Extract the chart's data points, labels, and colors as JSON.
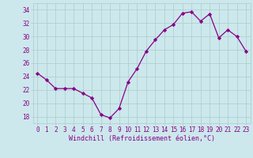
{
  "x": [
    0,
    1,
    2,
    3,
    4,
    5,
    6,
    7,
    8,
    9,
    10,
    11,
    12,
    13,
    14,
    15,
    16,
    17,
    18,
    19,
    20,
    21,
    22,
    23
  ],
  "y": [
    24.5,
    23.5,
    22.2,
    22.2,
    22.2,
    21.5,
    20.8,
    18.3,
    17.8,
    19.2,
    23.2,
    25.2,
    27.8,
    29.5,
    31.0,
    31.8,
    33.5,
    33.7,
    32.3,
    33.4,
    29.8,
    31.0,
    30.0,
    27.8
  ],
  "line_color": "#880088",
  "marker": "D",
  "markersize": 2.2,
  "linewidth": 0.9,
  "bg_color": "#cce8ec",
  "grid_color": "#aacccc",
  "tick_label_color": "#880088",
  "xlabel": "Windchill (Refroidissement éolien,°C)",
  "xlabel_color": "#880088",
  "xlim": [
    -0.5,
    23.5
  ],
  "ylim": [
    17,
    35
  ],
  "yticks": [
    18,
    20,
    22,
    24,
    26,
    28,
    30,
    32,
    34
  ],
  "xticks": [
    0,
    1,
    2,
    3,
    4,
    5,
    6,
    7,
    8,
    9,
    10,
    11,
    12,
    13,
    14,
    15,
    16,
    17,
    18,
    19,
    20,
    21,
    22,
    23
  ],
  "xtick_labels": [
    "0",
    "1",
    "2",
    "3",
    "4",
    "5",
    "6",
    "7",
    "8",
    "9",
    "10",
    "11",
    "12",
    "13",
    "14",
    "15",
    "16",
    "17",
    "18",
    "19",
    "20",
    "21",
    "22",
    "23"
  ],
  "ytick_labels": [
    "18",
    "20",
    "22",
    "24",
    "26",
    "28",
    "30",
    "32",
    "34"
  ],
  "tick_fontsize": 5.5,
  "xlabel_fontsize": 6.0,
  "font_family": "monospace"
}
